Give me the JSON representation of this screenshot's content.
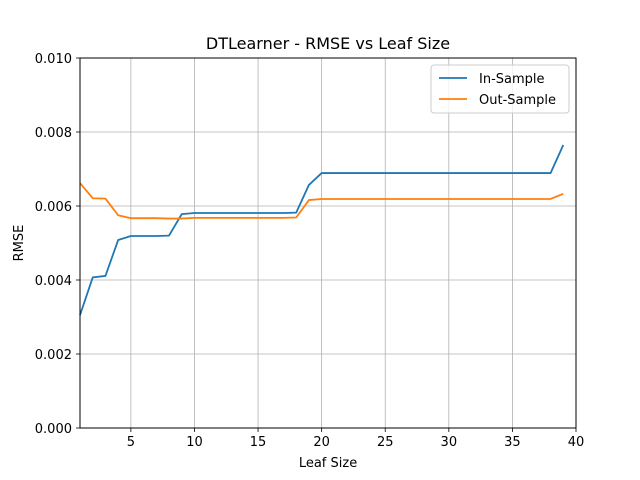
{
  "chart_data": {
    "type": "line",
    "title": "DTLearner - RMSE vs Leaf Size",
    "xlabel": "Leaf Size",
    "ylabel": "RMSE",
    "xlim": [
      1,
      40
    ],
    "ylim": [
      0,
      0.01
    ],
    "xticks": [
      5,
      10,
      15,
      20,
      25,
      30,
      35,
      40
    ],
    "xtick_labels": [
      "5",
      "10",
      "15",
      "20",
      "25",
      "30",
      "35",
      "40"
    ],
    "yticks": [
      0,
      0.002,
      0.004,
      0.006,
      0.008,
      0.01
    ],
    "ytick_labels": [
      "0.000",
      "0.002",
      "0.004",
      "0.006",
      "0.008",
      "0.010"
    ],
    "grid": true,
    "legend_position": "top-right",
    "series": [
      {
        "name": "In-Sample",
        "color": "#1f77b4",
        "x": [
          1,
          2,
          3,
          4,
          5,
          6,
          7,
          8,
          9,
          10,
          11,
          12,
          13,
          14,
          15,
          16,
          17,
          18,
          19,
          20,
          21,
          22,
          23,
          24,
          25,
          26,
          27,
          28,
          29,
          30,
          31,
          32,
          33,
          34,
          35,
          36,
          37,
          38,
          39
        ],
        "y": [
          0.00305,
          0.00407,
          0.00411,
          0.00508,
          0.00519,
          0.00519,
          0.00519,
          0.0052,
          0.00578,
          0.00581,
          0.00581,
          0.00581,
          0.00581,
          0.00581,
          0.00581,
          0.00581,
          0.00581,
          0.00582,
          0.00657,
          0.00689,
          0.00689,
          0.00689,
          0.00689,
          0.00689,
          0.00689,
          0.00689,
          0.00689,
          0.00689,
          0.00689,
          0.00689,
          0.00689,
          0.00689,
          0.00689,
          0.00689,
          0.00689,
          0.00689,
          0.00689,
          0.00689,
          0.00765
        ]
      },
      {
        "name": "Out-Sample",
        "color": "#ff7f0e",
        "x": [
          1,
          2,
          3,
          4,
          5,
          6,
          7,
          8,
          9,
          10,
          11,
          12,
          13,
          14,
          15,
          16,
          17,
          18,
          19,
          20,
          21,
          22,
          23,
          24,
          25,
          26,
          27,
          28,
          29,
          30,
          31,
          32,
          33,
          34,
          35,
          36,
          37,
          38,
          39
        ],
        "y": [
          0.00662,
          0.00621,
          0.0062,
          0.00575,
          0.00567,
          0.00567,
          0.00567,
          0.00566,
          0.00566,
          0.00568,
          0.00568,
          0.00568,
          0.00568,
          0.00568,
          0.00568,
          0.00568,
          0.00568,
          0.00569,
          0.00616,
          0.00619,
          0.00619,
          0.00619,
          0.00619,
          0.00619,
          0.00619,
          0.00619,
          0.00619,
          0.00619,
          0.00619,
          0.00619,
          0.00619,
          0.00619,
          0.00619,
          0.00619,
          0.00619,
          0.00619,
          0.00619,
          0.00619,
          0.00633
        ]
      }
    ]
  }
}
